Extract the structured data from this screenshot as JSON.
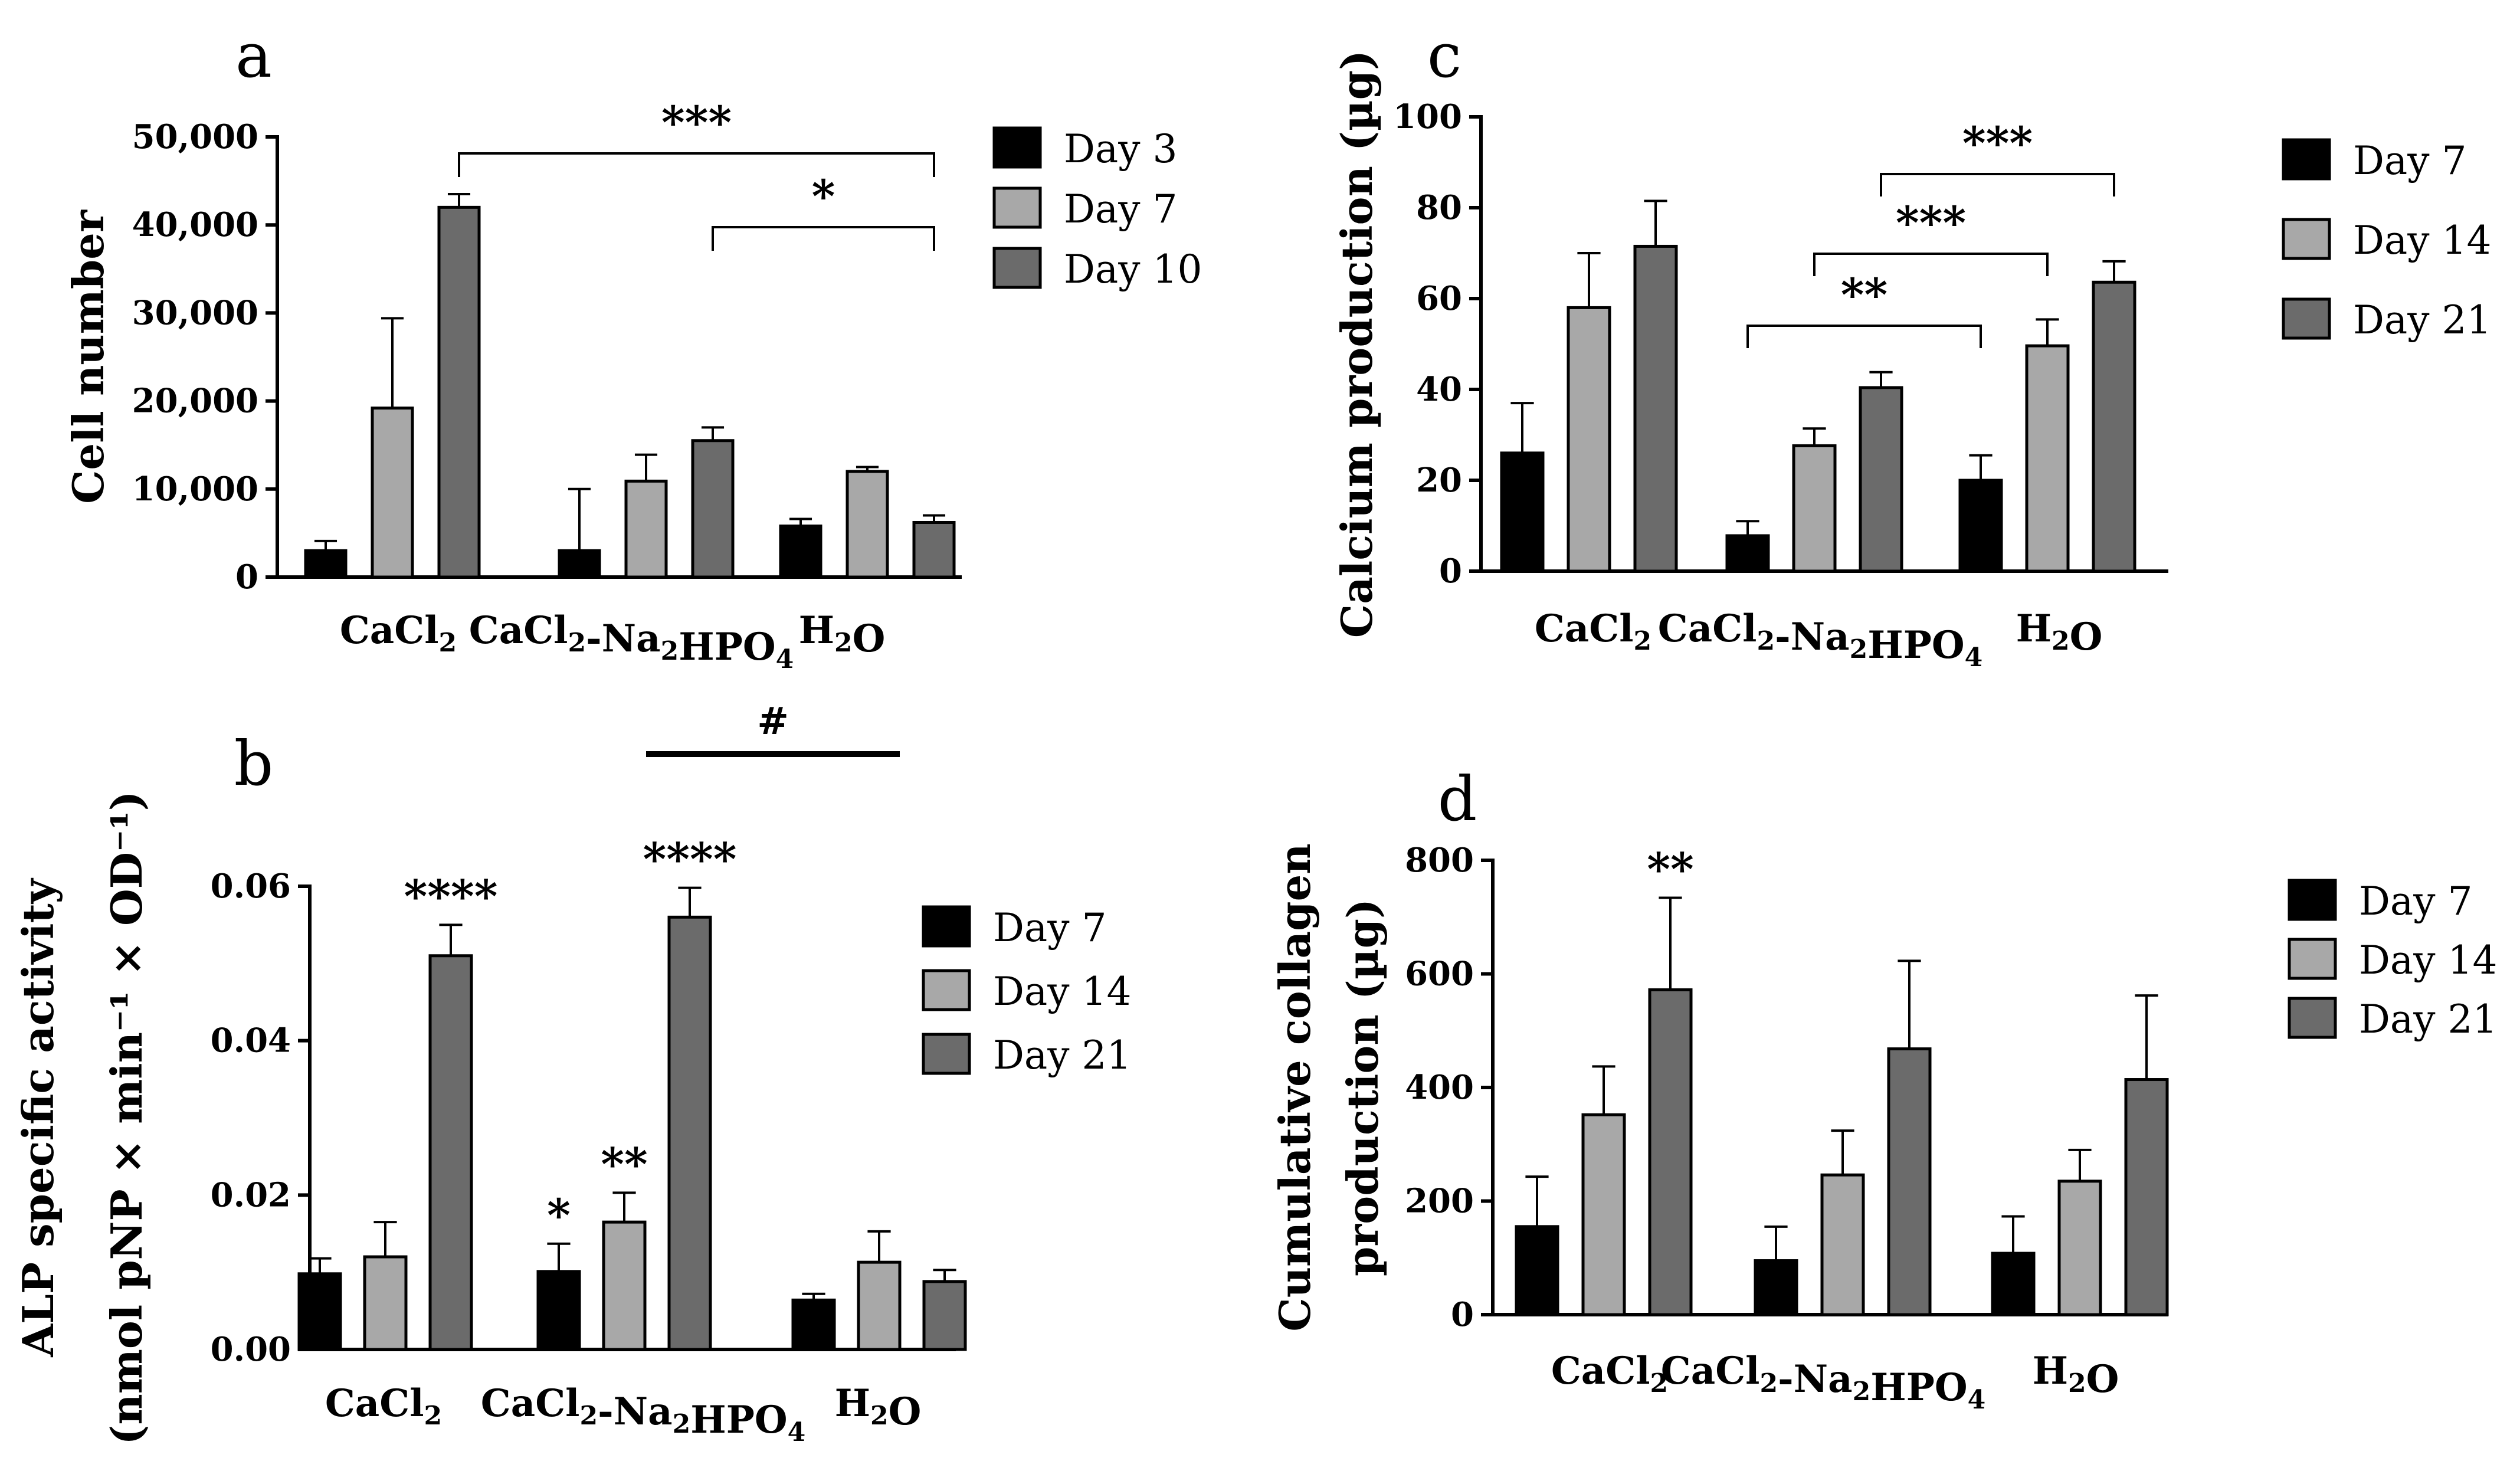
{
  "chart_data": [
    {
      "id": "a",
      "type": "bar",
      "panel_label": "a",
      "ylabel": "Cell number",
      "ylim": [
        0,
        50000
      ],
      "yticks": [
        "0",
        "10,000",
        "20,000",
        "30,000",
        "40,000",
        "50,000"
      ],
      "categories": [
        "CaCl2",
        "CaCl2-Na2HPO4",
        "H2O"
      ],
      "series": [
        {
          "name": "Day 3",
          "color": "#000000",
          "values": [
            3000,
            3000,
            5800
          ],
          "errors": [
            1100,
            7000,
            800
          ]
        },
        {
          "name": "Day 7",
          "color": "#a8a8a8",
          "values": [
            19200,
            10900,
            12000
          ],
          "errors": [
            10200,
            3000,
            500
          ]
        },
        {
          "name": "Day 10",
          "color": "#6b6b6b",
          "values": [
            42000,
            15500,
            6200
          ],
          "errors": [
            1500,
            1500,
            800
          ]
        }
      ],
      "significance": [
        {
          "label": "***",
          "from": [
            0,
            2
          ],
          "to": [
            2,
            2
          ]
        },
        {
          "label": "*",
          "from": [
            1,
            2
          ],
          "to": [
            2,
            2
          ]
        }
      ],
      "bar_labels": []
    },
    {
      "id": "b",
      "type": "bar",
      "panel_label": "b",
      "ylabel": "ALP specific activity",
      "ylabel2": "(nmol pNP × min⁻¹ × OD⁻¹)",
      "ylim": [
        0,
        0.06
      ],
      "yticks": [
        "0.00",
        "0.02",
        "0.04",
        "0.06"
      ],
      "categories": [
        "CaCl2",
        "CaCl2-Na2HPO4",
        "H2O"
      ],
      "series": [
        {
          "name": "Day 7",
          "color": "#000000",
          "values": [
            0.0098,
            0.0101,
            0.0064
          ],
          "errors": [
            0.002,
            0.0036,
            0.0008
          ]
        },
        {
          "name": "Day 14",
          "color": "#a8a8a8",
          "values": [
            0.012,
            0.0165,
            0.0113
          ],
          "errors": [
            0.0045,
            0.0038,
            0.004
          ]
        },
        {
          "name": "Day 21",
          "color": "#6b6b6b",
          "values": [
            0.051,
            0.056,
            0.0088
          ],
          "errors": [
            0.004,
            0.0038,
            0.0015
          ]
        }
      ],
      "bar_labels": [
        {
          "cat": 0,
          "series": 2,
          "label": "****"
        },
        {
          "cat": 1,
          "series": 2,
          "label": "****"
        },
        {
          "cat": 1,
          "series": 0,
          "label": "*"
        },
        {
          "cat": 1,
          "series": 1,
          "label": "**"
        }
      ],
      "top_line_label": "#",
      "significance": []
    },
    {
      "id": "c",
      "type": "bar",
      "panel_label": "c",
      "ylabel": "Calcium production (µg)",
      "ylim": [
        0,
        100
      ],
      "yticks": [
        "0",
        "20",
        "40",
        "60",
        "80",
        "100"
      ],
      "categories": [
        "CaCl2",
        "CaCl2-Na2HPO4",
        "H2O"
      ],
      "series": [
        {
          "name": "Day 7",
          "color": "#000000",
          "values": [
            26,
            7.8,
            20
          ],
          "errors": [
            11,
            3.2,
            5.5
          ]
        },
        {
          "name": "Day 14",
          "color": "#a8a8a8",
          "values": [
            58,
            27.6,
            49.6
          ],
          "errors": [
            12,
            3.8,
            5.8
          ]
        },
        {
          "name": "Day 21",
          "color": "#6b6b6b",
          "values": [
            71.5,
            40.4,
            63.6
          ],
          "errors": [
            10,
            3.4,
            4.6
          ]
        }
      ],
      "significance": [
        {
          "label": "***",
          "from": [
            1,
            2
          ],
          "to": [
            2,
            2
          ]
        },
        {
          "label": "***",
          "from": [
            1,
            1
          ],
          "to": [
            2,
            1
          ]
        },
        {
          "label": "**",
          "from": [
            1,
            0
          ],
          "to": [
            2,
            0
          ]
        }
      ],
      "bar_labels": []
    },
    {
      "id": "d",
      "type": "bar",
      "panel_label": "d",
      "ylabel": "Cumulative collagen",
      "ylabel2": "production (µg)",
      "ylim": [
        0,
        800
      ],
      "yticks": [
        "0",
        "200",
        "400",
        "600",
        "800"
      ],
      "categories": [
        "CaCl2",
        "CaCl2-Na2HPO4",
        "H2O"
      ],
      "series": [
        {
          "name": "Day 7",
          "color": "#000000",
          "values": [
            155,
            95,
            108
          ],
          "errors": [
            88,
            60,
            65
          ]
        },
        {
          "name": "Day 14",
          "color": "#a8a8a8",
          "values": [
            352,
            246,
            235
          ],
          "errors": [
            85,
            78,
            55
          ]
        },
        {
          "name": "Day 21",
          "color": "#6b6b6b",
          "values": [
            572,
            468,
            414
          ],
          "errors": [
            162,
            155,
            148
          ]
        }
      ],
      "bar_labels": [
        {
          "cat": 0,
          "series": 2,
          "label": "**"
        }
      ],
      "significance": []
    }
  ]
}
